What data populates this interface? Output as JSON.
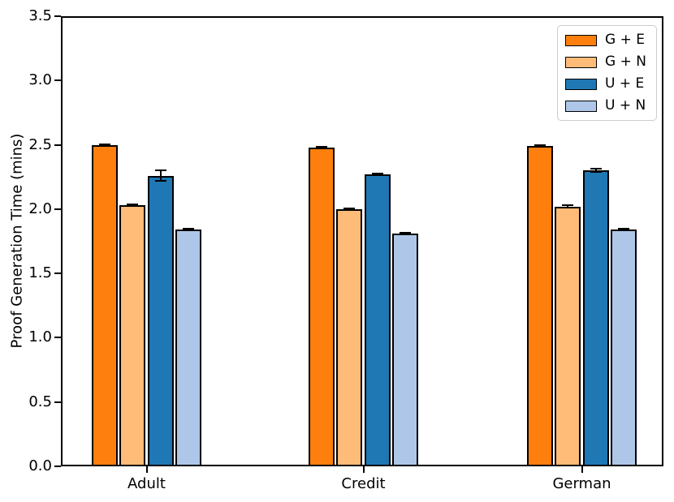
{
  "figure": {
    "background": "#ffffff"
  },
  "chart_data": {
    "type": "bar",
    "title": "",
    "xlabel": "",
    "ylabel": "Proof Generation Time (mins)",
    "categories": [
      "Adult",
      "Credit",
      "German"
    ],
    "series": [
      {
        "name": "G + E",
        "color": "#ff7f0e",
        "values": [
          2.5,
          2.48,
          2.49
        ],
        "errors": [
          0.005,
          0.006,
          0.005
        ]
      },
      {
        "name": "G + N",
        "color": "#ffbb78",
        "values": [
          2.03,
          2.0,
          2.02
        ],
        "errors": [
          0.006,
          0.008,
          0.008
        ]
      },
      {
        "name": "U + E",
        "color": "#1f77b4",
        "values": [
          2.26,
          2.27,
          2.3
        ],
        "errors": [
          0.04,
          0.006,
          0.012
        ]
      },
      {
        "name": "U + N",
        "color": "#aec7e8",
        "values": [
          1.84,
          1.81,
          1.84
        ],
        "errors": [
          0.005,
          0.008,
          0.006
        ]
      }
    ],
    "ylim": [
      0.0,
      3.5
    ],
    "yticks": [
      "0.0",
      "0.5",
      "1.0",
      "1.5",
      "2.0",
      "2.5",
      "3.0",
      "3.5"
    ],
    "grid": false,
    "legend_position": "upper right",
    "bar_edge_color": "#000000",
    "error_bar_color": "#000000",
    "spine_color": "#000000"
  }
}
